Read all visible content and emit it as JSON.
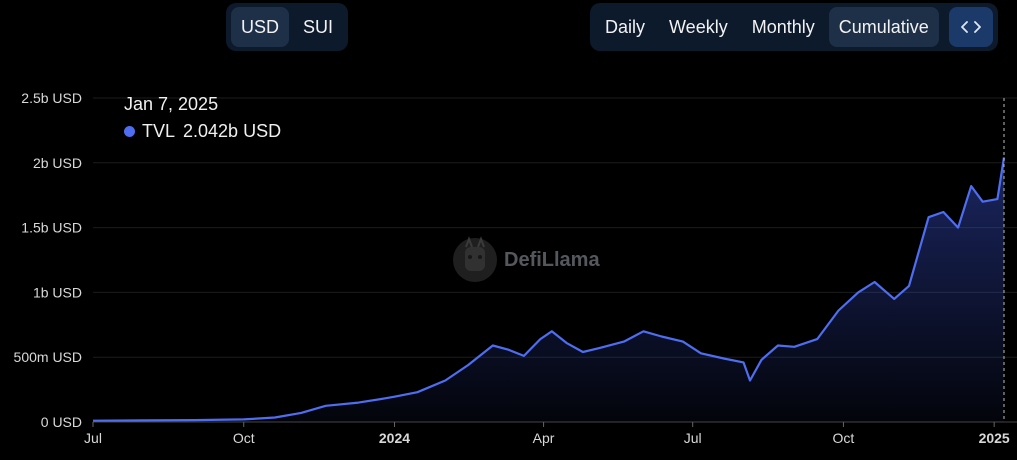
{
  "unit_toggle": {
    "options": [
      "USD",
      "SUI"
    ],
    "selected": "USD"
  },
  "period_toggle": {
    "options": [
      "Daily",
      "Weekly",
      "Monthly",
      "Cumulative"
    ],
    "selected": "Cumulative"
  },
  "embed_button": {
    "icon": "code-icon"
  },
  "tooltip": {
    "date": "Jan 7, 2025",
    "series": "TVL",
    "value": "2.042b USD",
    "color": "#4f6df0"
  },
  "watermark": {
    "text": "DefiLlama"
  },
  "chart_data": {
    "type": "area",
    "series": [
      {
        "name": "TVL",
        "unit": "USD",
        "color": "#4f6df0"
      }
    ],
    "y_tick_labels": [
      "0 USD",
      "500m USD",
      "1b USD",
      "1.5b USD",
      "2b USD",
      "2.5b USD"
    ],
    "y_ticks": [
      0,
      500000000,
      1000000000,
      1500000000,
      2000000000,
      2500000000
    ],
    "ylim": [
      0,
      2500000000
    ],
    "x_tick_labels": [
      {
        "label": "Jul",
        "date": "2023-07-01",
        "bold": false
      },
      {
        "label": "Oct",
        "date": "2023-10-01",
        "bold": false
      },
      {
        "label": "2024",
        "date": "2024-01-01",
        "bold": true
      },
      {
        "label": "Apr",
        "date": "2024-04-01",
        "bold": false
      },
      {
        "label": "Jul",
        "date": "2024-07-01",
        "bold": false
      },
      {
        "label": "Oct",
        "date": "2024-10-01",
        "bold": false
      },
      {
        "label": "2025",
        "date": "2025-01-01",
        "bold": true
      }
    ],
    "xlim": [
      "2023-07-01",
      "2025-01-07"
    ],
    "points": [
      [
        "2023-07-01",
        10000000
      ],
      [
        "2023-08-01",
        12000000
      ],
      [
        "2023-09-01",
        15000000
      ],
      [
        "2023-10-01",
        20000000
      ],
      [
        "2023-10-20",
        35000000
      ],
      [
        "2023-11-05",
        70000000
      ],
      [
        "2023-11-20",
        125000000
      ],
      [
        "2023-12-10",
        150000000
      ],
      [
        "2023-12-25",
        180000000
      ],
      [
        "2024-01-01",
        195000000
      ],
      [
        "2024-01-15",
        230000000
      ],
      [
        "2024-02-01",
        320000000
      ],
      [
        "2024-02-15",
        440000000
      ],
      [
        "2024-03-01",
        590000000
      ],
      [
        "2024-03-10",
        560000000
      ],
      [
        "2024-03-20",
        510000000
      ],
      [
        "2024-03-30",
        640000000
      ],
      [
        "2024-04-06",
        700000000
      ],
      [
        "2024-04-15",
        610000000
      ],
      [
        "2024-04-25",
        540000000
      ],
      [
        "2024-05-05",
        570000000
      ],
      [
        "2024-05-20",
        620000000
      ],
      [
        "2024-06-01",
        700000000
      ],
      [
        "2024-06-12",
        660000000
      ],
      [
        "2024-06-25",
        620000000
      ],
      [
        "2024-07-06",
        530000000
      ],
      [
        "2024-07-20",
        490000000
      ],
      [
        "2024-08-01",
        460000000
      ],
      [
        "2024-08-05",
        320000000
      ],
      [
        "2024-08-12",
        480000000
      ],
      [
        "2024-08-22",
        590000000
      ],
      [
        "2024-09-01",
        580000000
      ],
      [
        "2024-09-15",
        640000000
      ],
      [
        "2024-09-28",
        860000000
      ],
      [
        "2024-10-10",
        1000000000
      ],
      [
        "2024-10-20",
        1080000000
      ],
      [
        "2024-11-01",
        950000000
      ],
      [
        "2024-11-10",
        1050000000
      ],
      [
        "2024-11-22",
        1580000000
      ],
      [
        "2024-12-01",
        1620000000
      ],
      [
        "2024-12-10",
        1500000000
      ],
      [
        "2024-12-18",
        1820000000
      ],
      [
        "2024-12-25",
        1700000000
      ],
      [
        "2025-01-03",
        1720000000
      ],
      [
        "2025-01-07",
        2042000000
      ]
    ],
    "hover_date": "2025-01-07",
    "grid": true,
    "legend": "tooltip-top-left"
  }
}
